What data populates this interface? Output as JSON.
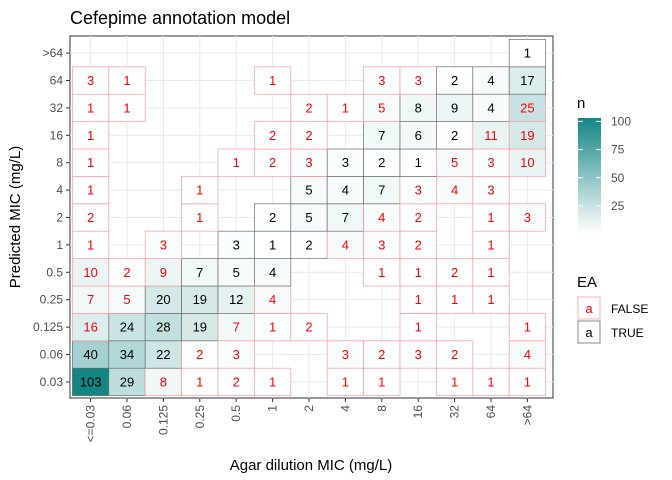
{
  "chart_data": {
    "type": "heatmap",
    "title": "Cefepime annotation model",
    "xlabel": "Agar dilution MIC (mg/L)",
    "ylabel": "Predicted MIC (mg/L)",
    "x_categories": [
      "<=0.03",
      "0.06",
      "0.125",
      "0.25",
      "0.5",
      "1",
      "2",
      "4",
      "8",
      "16",
      "32",
      "64",
      ">64"
    ],
    "y_categories": [
      "0.03",
      "0.06",
      "0.125",
      "0.25",
      "0.5",
      "1",
      "2",
      "4",
      "8",
      "16",
      "32",
      "64",
      ">64"
    ],
    "cells": [
      {
        "x": "<=0.03",
        "y": "0.03",
        "n": 103,
        "ea": true
      },
      {
        "x": "0.06",
        "y": "0.03",
        "n": 29,
        "ea": true
      },
      {
        "x": "0.125",
        "y": "0.03",
        "n": 8,
        "ea": false
      },
      {
        "x": "0.25",
        "y": "0.03",
        "n": 1,
        "ea": false
      },
      {
        "x": "0.5",
        "y": "0.03",
        "n": 2,
        "ea": false
      },
      {
        "x": "1",
        "y": "0.03",
        "n": 1,
        "ea": false
      },
      {
        "x": "4",
        "y": "0.03",
        "n": 1,
        "ea": false
      },
      {
        "x": "8",
        "y": "0.03",
        "n": 1,
        "ea": false
      },
      {
        "x": "32",
        "y": "0.03",
        "n": 1,
        "ea": false
      },
      {
        "x": "64",
        "y": "0.03",
        "n": 1,
        "ea": false
      },
      {
        "x": ">64",
        "y": "0.03",
        "n": 1,
        "ea": false
      },
      {
        "x": "<=0.03",
        "y": "0.06",
        "n": 40,
        "ea": true
      },
      {
        "x": "0.06",
        "y": "0.06",
        "n": 34,
        "ea": true
      },
      {
        "x": "0.125",
        "y": "0.06",
        "n": 22,
        "ea": true
      },
      {
        "x": "0.25",
        "y": "0.06",
        "n": 2,
        "ea": false
      },
      {
        "x": "0.5",
        "y": "0.06",
        "n": 3,
        "ea": false
      },
      {
        "x": "4",
        "y": "0.06",
        "n": 3,
        "ea": false
      },
      {
        "x": "8",
        "y": "0.06",
        "n": 2,
        "ea": false
      },
      {
        "x": "16",
        "y": "0.06",
        "n": 3,
        "ea": false
      },
      {
        "x": "32",
        "y": "0.06",
        "n": 2,
        "ea": false
      },
      {
        "x": ">64",
        "y": "0.06",
        "n": 4,
        "ea": false
      },
      {
        "x": "<=0.03",
        "y": "0.125",
        "n": 16,
        "ea": false
      },
      {
        "x": "0.06",
        "y": "0.125",
        "n": 24,
        "ea": true
      },
      {
        "x": "0.125",
        "y": "0.125",
        "n": 28,
        "ea": true
      },
      {
        "x": "0.25",
        "y": "0.125",
        "n": 19,
        "ea": true
      },
      {
        "x": "0.5",
        "y": "0.125",
        "n": 7,
        "ea": false
      },
      {
        "x": "1",
        "y": "0.125",
        "n": 1,
        "ea": false
      },
      {
        "x": "2",
        "y": "0.125",
        "n": 2,
        "ea": false
      },
      {
        "x": "16",
        "y": "0.125",
        "n": 1,
        "ea": false
      },
      {
        "x": ">64",
        "y": "0.125",
        "n": 1,
        "ea": false
      },
      {
        "x": "<=0.03",
        "y": "0.25",
        "n": 7,
        "ea": false
      },
      {
        "x": "0.06",
        "y": "0.25",
        "n": 5,
        "ea": false
      },
      {
        "x": "0.125",
        "y": "0.25",
        "n": 20,
        "ea": true
      },
      {
        "x": "0.25",
        "y": "0.25",
        "n": 19,
        "ea": true
      },
      {
        "x": "0.5",
        "y": "0.25",
        "n": 12,
        "ea": true
      },
      {
        "x": "1",
        "y": "0.25",
        "n": 4,
        "ea": false
      },
      {
        "x": "16",
        "y": "0.25",
        "n": 1,
        "ea": false
      },
      {
        "x": "32",
        "y": "0.25",
        "n": 1,
        "ea": false
      },
      {
        "x": "64",
        "y": "0.25",
        "n": 1,
        "ea": false
      },
      {
        "x": "<=0.03",
        "y": "0.5",
        "n": 10,
        "ea": false
      },
      {
        "x": "0.06",
        "y": "0.5",
        "n": 2,
        "ea": false
      },
      {
        "x": "0.125",
        "y": "0.5",
        "n": 9,
        "ea": false
      },
      {
        "x": "0.25",
        "y": "0.5",
        "n": 7,
        "ea": true
      },
      {
        "x": "0.5",
        "y": "0.5",
        "n": 5,
        "ea": true
      },
      {
        "x": "1",
        "y": "0.5",
        "n": 4,
        "ea": true
      },
      {
        "x": "8",
        "y": "0.5",
        "n": 1,
        "ea": false
      },
      {
        "x": "16",
        "y": "0.5",
        "n": 1,
        "ea": false
      },
      {
        "x": "32",
        "y": "0.5",
        "n": 2,
        "ea": false
      },
      {
        "x": "64",
        "y": "0.5",
        "n": 1,
        "ea": false
      },
      {
        "x": "<=0.03",
        "y": "1",
        "n": 1,
        "ea": false
      },
      {
        "x": "0.125",
        "y": "1",
        "n": 3,
        "ea": false
      },
      {
        "x": "0.5",
        "y": "1",
        "n": 3,
        "ea": true
      },
      {
        "x": "1",
        "y": "1",
        "n": 1,
        "ea": true
      },
      {
        "x": "2",
        "y": "1",
        "n": 2,
        "ea": true
      },
      {
        "x": "4",
        "y": "1",
        "n": 4,
        "ea": false
      },
      {
        "x": "8",
        "y": "1",
        "n": 3,
        "ea": false
      },
      {
        "x": "16",
        "y": "1",
        "n": 2,
        "ea": false
      },
      {
        "x": "64",
        "y": "1",
        "n": 1,
        "ea": false
      },
      {
        "x": "<=0.03",
        "y": "2",
        "n": 2,
        "ea": false
      },
      {
        "x": "0.25",
        "y": "2",
        "n": 1,
        "ea": false
      },
      {
        "x": "1",
        "y": "2",
        "n": 2,
        "ea": true
      },
      {
        "x": "2",
        "y": "2",
        "n": 5,
        "ea": true
      },
      {
        "x": "4",
        "y": "2",
        "n": 7,
        "ea": true
      },
      {
        "x": "8",
        "y": "2",
        "n": 4,
        "ea": false
      },
      {
        "x": "16",
        "y": "2",
        "n": 2,
        "ea": false
      },
      {
        "x": "64",
        "y": "2",
        "n": 1,
        "ea": false
      },
      {
        "x": ">64",
        "y": "2",
        "n": 3,
        "ea": false
      },
      {
        "x": "<=0.03",
        "y": "4",
        "n": 1,
        "ea": false
      },
      {
        "x": "0.25",
        "y": "4",
        "n": 1,
        "ea": false
      },
      {
        "x": "2",
        "y": "4",
        "n": 5,
        "ea": true
      },
      {
        "x": "4",
        "y": "4",
        "n": 4,
        "ea": true
      },
      {
        "x": "8",
        "y": "4",
        "n": 7,
        "ea": true
      },
      {
        "x": "16",
        "y": "4",
        "n": 3,
        "ea": false
      },
      {
        "x": "32",
        "y": "4",
        "n": 4,
        "ea": false
      },
      {
        "x": "64",
        "y": "4",
        "n": 3,
        "ea": false
      },
      {
        "x": "<=0.03",
        "y": "8",
        "n": 1,
        "ea": false
      },
      {
        "x": "0.5",
        "y": "8",
        "n": 1,
        "ea": false
      },
      {
        "x": "1",
        "y": "8",
        "n": 2,
        "ea": false
      },
      {
        "x": "2",
        "y": "8",
        "n": 3,
        "ea": false
      },
      {
        "x": "4",
        "y": "8",
        "n": 3,
        "ea": true
      },
      {
        "x": "8",
        "y": "8",
        "n": 2,
        "ea": true
      },
      {
        "x": "16",
        "y": "8",
        "n": 1,
        "ea": true
      },
      {
        "x": "32",
        "y": "8",
        "n": 5,
        "ea": false
      },
      {
        "x": "64",
        "y": "8",
        "n": 3,
        "ea": false
      },
      {
        "x": ">64",
        "y": "8",
        "n": 10,
        "ea": false
      },
      {
        "x": "<=0.03",
        "y": "16",
        "n": 1,
        "ea": false
      },
      {
        "x": "1",
        "y": "16",
        "n": 2,
        "ea": false
      },
      {
        "x": "2",
        "y": "16",
        "n": 2,
        "ea": false
      },
      {
        "x": "8",
        "y": "16",
        "n": 7,
        "ea": true
      },
      {
        "x": "16",
        "y": "16",
        "n": 6,
        "ea": true
      },
      {
        "x": "32",
        "y": "16",
        "n": 2,
        "ea": true
      },
      {
        "x": "64",
        "y": "16",
        "n": 11,
        "ea": false
      },
      {
        "x": ">64",
        "y": "16",
        "n": 19,
        "ea": false
      },
      {
        "x": "<=0.03",
        "y": "32",
        "n": 1,
        "ea": false
      },
      {
        "x": "0.06",
        "y": "32",
        "n": 1,
        "ea": false
      },
      {
        "x": "2",
        "y": "32",
        "n": 2,
        "ea": false
      },
      {
        "x": "4",
        "y": "32",
        "n": 1,
        "ea": false
      },
      {
        "x": "8",
        "y": "32",
        "n": 5,
        "ea": false
      },
      {
        "x": "16",
        "y": "32",
        "n": 8,
        "ea": true
      },
      {
        "x": "32",
        "y": "32",
        "n": 9,
        "ea": true
      },
      {
        "x": "64",
        "y": "32",
        "n": 4,
        "ea": true
      },
      {
        "x": ">64",
        "y": "32",
        "n": 25,
        "ea": false
      },
      {
        "x": "<=0.03",
        "y": "64",
        "n": 3,
        "ea": false
      },
      {
        "x": "0.06",
        "y": "64",
        "n": 1,
        "ea": false
      },
      {
        "x": "1",
        "y": "64",
        "n": 1,
        "ea": false
      },
      {
        "x": "8",
        "y": "64",
        "n": 3,
        "ea": false
      },
      {
        "x": "16",
        "y": "64",
        "n": 3,
        "ea": false
      },
      {
        "x": "32",
        "y": "64",
        "n": 2,
        "ea": true
      },
      {
        "x": "64",
        "y": "64",
        "n": 4,
        "ea": true
      },
      {
        "x": ">64",
        "y": "64",
        "n": 17,
        "ea": true
      },
      {
        "x": ">64",
        "y": ">64",
        "n": 1,
        "ea": true
      }
    ],
    "fill_scale": {
      "title": "n",
      "breaks": [
        25,
        50,
        75,
        100
      ],
      "limits": [
        1,
        103
      ],
      "low_color": "#ffffff",
      "high_color": "#138585"
    },
    "ea_legend": {
      "title": "EA",
      "items": [
        {
          "key": "a",
          "label": "FALSE",
          "color": "#ff0000"
        },
        {
          "key": "a",
          "label": "TRUE",
          "color": "#000000"
        }
      ]
    },
    "grid": true,
    "legend_position": "right"
  }
}
